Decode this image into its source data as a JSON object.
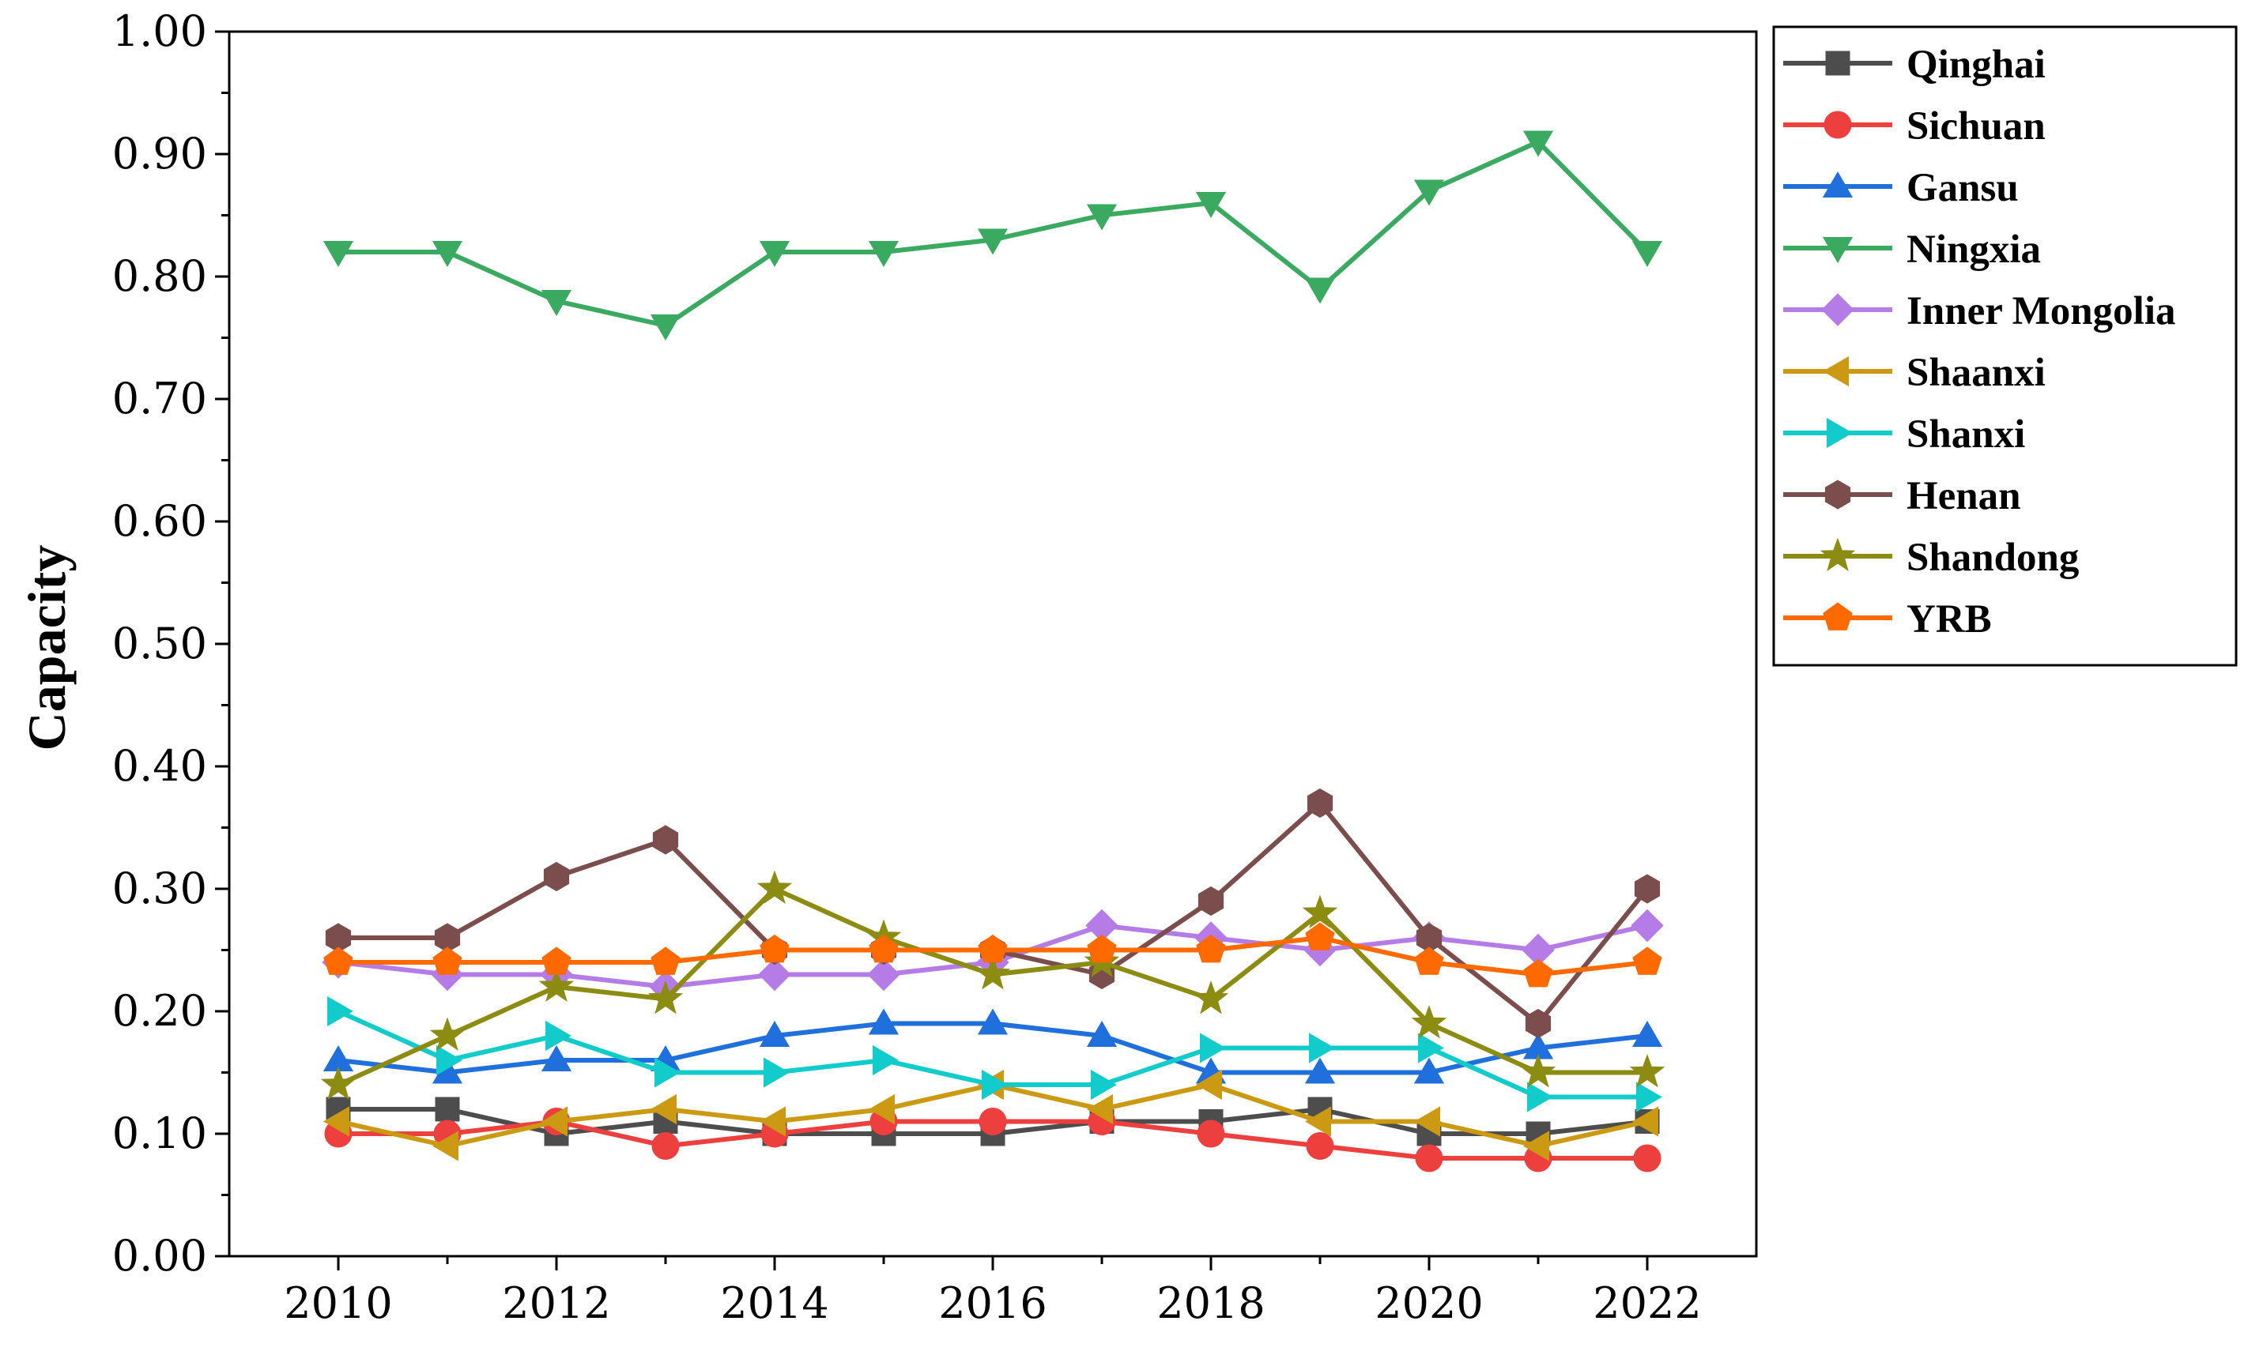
{
  "chart_data": {
    "type": "line",
    "ylabel": "Capacity",
    "xlabel": "",
    "x": [
      2010,
      2011,
      2012,
      2013,
      2014,
      2015,
      2016,
      2017,
      2018,
      2019,
      2020,
      2021,
      2022
    ],
    "x_ticks": [
      "2010",
      "2012",
      "2014",
      "2016",
      "2018",
      "2020",
      "2022"
    ],
    "y_ticks": [
      "0.00",
      "0.10",
      "0.20",
      "0.30",
      "0.40",
      "0.50",
      "0.60",
      "0.70",
      "0.80",
      "0.90",
      "1.00"
    ],
    "xlim": [
      2009,
      2023
    ],
    "ylim": [
      0,
      1.0
    ],
    "grid": false,
    "legend_position": "outside-top-right",
    "series": [
      {
        "name": "Qinghai",
        "color": "#4d4d4d",
        "marker": "square",
        "values": [
          0.12,
          0.12,
          0.1,
          0.11,
          0.1,
          0.1,
          0.1,
          0.11,
          0.11,
          0.12,
          0.1,
          0.1,
          0.11
        ]
      },
      {
        "name": "Sichuan",
        "color": "#ee3f3f",
        "marker": "circle",
        "values": [
          0.1,
          0.1,
          0.11,
          0.09,
          0.1,
          0.11,
          0.11,
          0.11,
          0.1,
          0.09,
          0.08,
          0.08,
          0.08
        ]
      },
      {
        "name": "Gansu",
        "color": "#1f6fdd",
        "marker": "triangle-up",
        "values": [
          0.16,
          0.15,
          0.16,
          0.16,
          0.18,
          0.19,
          0.19,
          0.18,
          0.15,
          0.15,
          0.15,
          0.17,
          0.18
        ]
      },
      {
        "name": "Ningxia",
        "color": "#3aaa60",
        "marker": "triangle-down",
        "values": [
          0.82,
          0.82,
          0.78,
          0.76,
          0.82,
          0.82,
          0.83,
          0.85,
          0.86,
          0.79,
          0.87,
          0.91,
          0.82
        ]
      },
      {
        "name": "Inner Mongolia",
        "color": "#b57be6",
        "marker": "diamond",
        "values": [
          0.24,
          0.23,
          0.23,
          0.22,
          0.23,
          0.23,
          0.24,
          0.27,
          0.26,
          0.25,
          0.26,
          0.25,
          0.27
        ]
      },
      {
        "name": "Shaanxi",
        "color": "#cc9a12",
        "marker": "triangle-left",
        "values": [
          0.11,
          0.09,
          0.11,
          0.12,
          0.11,
          0.12,
          0.14,
          0.12,
          0.14,
          0.11,
          0.11,
          0.09,
          0.11
        ]
      },
      {
        "name": "Shanxi",
        "color": "#12cccc",
        "marker": "triangle-right",
        "values": [
          0.2,
          0.16,
          0.18,
          0.15,
          0.15,
          0.16,
          0.14,
          0.14,
          0.17,
          0.17,
          0.17,
          0.13,
          0.13
        ]
      },
      {
        "name": "Henan",
        "color": "#7b4d4d",
        "marker": "hexagon",
        "values": [
          0.26,
          0.26,
          0.31,
          0.34,
          0.25,
          0.25,
          0.25,
          0.23,
          0.29,
          0.37,
          0.26,
          0.19,
          0.3
        ]
      },
      {
        "name": "Shandong",
        "color": "#8c8c12",
        "marker": "star",
        "values": [
          0.14,
          0.18,
          0.22,
          0.21,
          0.3,
          0.26,
          0.23,
          0.24,
          0.21,
          0.28,
          0.19,
          0.15,
          0.15
        ]
      },
      {
        "name": "YRB",
        "color": "#ff6a00",
        "marker": "pentagon",
        "values": [
          0.24,
          0.24,
          0.24,
          0.24,
          0.25,
          0.25,
          0.25,
          0.25,
          0.25,
          0.26,
          0.24,
          0.23,
          0.24
        ]
      }
    ]
  }
}
